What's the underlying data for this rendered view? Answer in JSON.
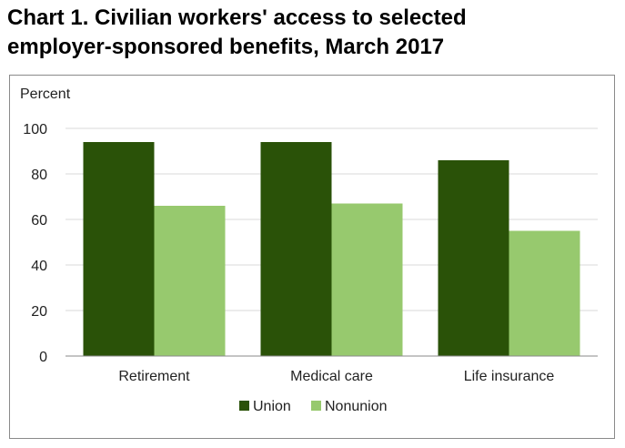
{
  "title_lines": [
    "Chart 1. Civilian workers' access to selected",
    "employer-sponsored benefits, March 2017"
  ],
  "chart_data": {
    "type": "bar",
    "title": "Chart 1. Civilian workers' access to selected employer-sponsored benefits, March 2017",
    "ylabel": "Percent",
    "xlabel": "",
    "categories": [
      "Retirement",
      "Medical care",
      "Life insurance"
    ],
    "series": [
      {
        "name": "Union",
        "values": [
          94,
          94,
          86
        ],
        "color": "#2a5208"
      },
      {
        "name": "Nonunion",
        "values": [
          66,
          67,
          55
        ],
        "color": "#97c96e"
      }
    ],
    "ylim": [
      0,
      100
    ],
    "yticks": [
      0,
      20,
      40,
      60,
      80,
      100
    ],
    "grid": true,
    "legend_position": "bottom",
    "gridline_color": "#d9d9d9",
    "axis_color": "#8a8a8a"
  }
}
